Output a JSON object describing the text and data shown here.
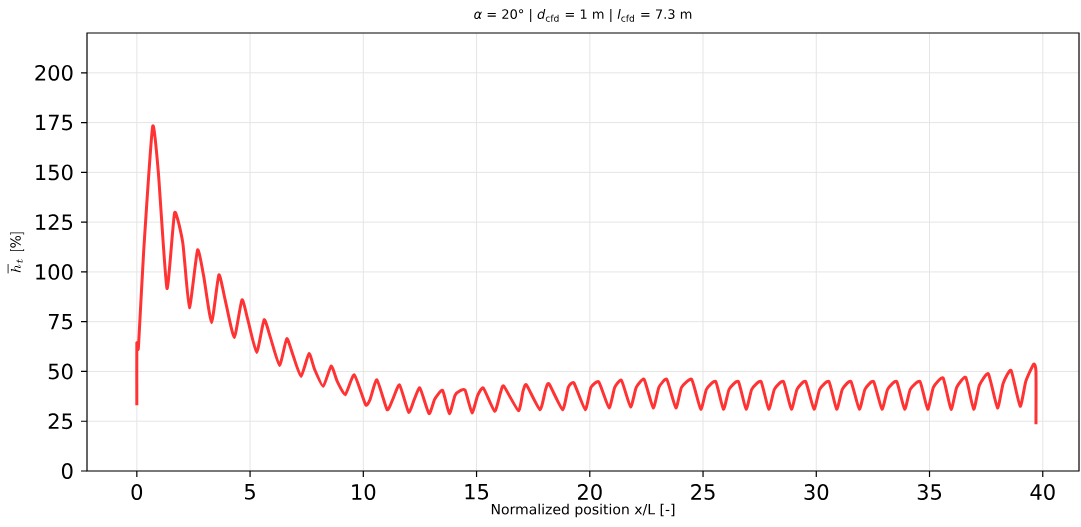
{
  "chart_data": {
    "type": "line",
    "title": "*α* = 20° | *d*$_{cfd}$ = 1 m | *l*$_{cfd}$ = 7.3 m",
    "xlabel": "Normalized position x/L [-]",
    "ylabel": "\\overline{h}_t\\ [\\%]",
    "xlim": [
      -2.2,
      41.6
    ],
    "ylim": [
      0,
      220
    ],
    "xticks": [
      0,
      5,
      10,
      15,
      20,
      25,
      30,
      35,
      40
    ],
    "yticks": [
      0,
      25,
      50,
      75,
      100,
      125,
      150,
      175,
      200
    ],
    "grid": true,
    "marker": "none",
    "line_style": "solid",
    "series": [
      {
        "color": "#ff3333",
        "x": [
          0,
          0,
          0.07,
          0.3,
          0.7,
          0.95,
          1.33,
          1.67,
          2.03,
          2.32,
          2.68,
          2.95,
          3.3,
          3.62,
          3.9,
          4.3,
          4.64,
          4.9,
          5.29,
          5.62,
          5.9,
          6.3,
          6.62,
          6.9,
          7.25,
          7.6,
          7.85,
          8.23,
          8.58,
          8.85,
          9.2,
          9.6,
          10.1,
          10.3,
          10.6,
          11.05,
          11.3,
          11.6,
          12.0,
          12.25,
          12.5,
          12.9,
          13.15,
          13.5,
          13.8,
          14.05,
          14.3,
          14.5,
          14.8,
          15.05,
          15.3,
          15.8,
          16.05,
          16.2,
          16.85,
          17.05,
          17.2,
          17.8,
          18.05,
          18.2,
          18.8,
          19.05,
          19.3,
          19.8,
          20.05,
          20.4,
          20.85,
          21.1,
          21.4,
          21.8,
          22.05,
          22.4,
          22.8,
          23.05,
          23.4,
          23.8,
          24.05,
          24.5,
          24.9,
          25.15,
          25.56,
          25.9,
          26.15,
          26.56,
          26.9,
          27.15,
          27.56,
          27.9,
          28.15,
          28.55,
          28.9,
          29.15,
          29.53,
          29.9,
          30.15,
          30.56,
          30.9,
          31.15,
          31.53,
          31.9,
          32.15,
          32.53,
          32.9,
          33.15,
          33.55,
          33.9,
          34.15,
          34.58,
          34.92,
          35.17,
          35.6,
          35.95,
          36.2,
          36.6,
          36.95,
          37.2,
          37.6,
          38.0,
          38.25,
          38.6,
          39.0,
          39.25,
          39.6,
          39.7,
          39.7
        ],
        "values": [
          33,
          64,
          62,
          110,
          173,
          150,
          91.7,
          129.8,
          114.5,
          82,
          111,
          98,
          74.5,
          98.5,
          86,
          67,
          86,
          76,
          59.5,
          76,
          67,
          53,
          66.5,
          58,
          47.5,
          59,
          51,
          42.5,
          52.8,
          45,
          38.3,
          48.3,
          33.3,
          36,
          45.8,
          30.8,
          36,
          43.3,
          29.5,
          36,
          41.7,
          28.8,
          36,
          40.5,
          28.8,
          38,
          40.5,
          40.5,
          29.2,
          38,
          41.7,
          30,
          39,
          42.7,
          30.3,
          40,
          43.3,
          30.8,
          41,
          43.8,
          30.8,
          42,
          44.2,
          30.8,
          42,
          44.7,
          31.7,
          42,
          45.5,
          32.2,
          42,
          46,
          31.7,
          42,
          46,
          31.7,
          42,
          46,
          31,
          41,
          45,
          31,
          41,
          45,
          31,
          41,
          45,
          31,
          41,
          45,
          31,
          41,
          45,
          31,
          41,
          45,
          31,
          41,
          45,
          31,
          41,
          45,
          31,
          41,
          45,
          31,
          41,
          45,
          31,
          42,
          46.7,
          31,
          42,
          47,
          31,
          43,
          48.8,
          31.7,
          44,
          50.5,
          32.5,
          45,
          53.7,
          50,
          23.5
        ]
      }
    ]
  }
}
